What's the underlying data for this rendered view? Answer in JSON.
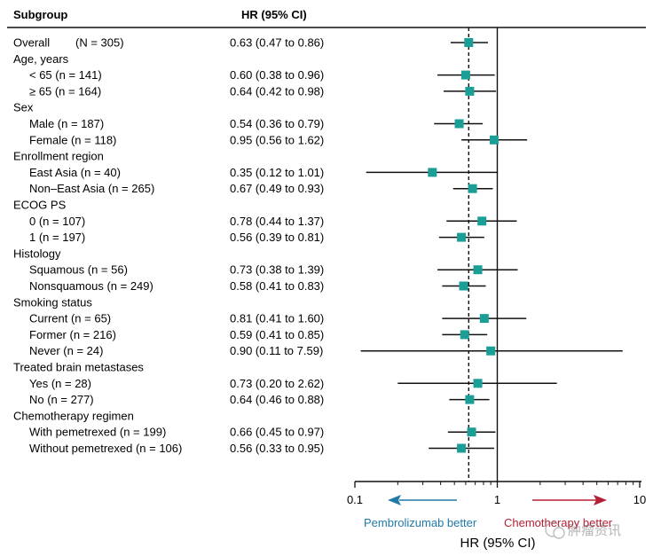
{
  "chart_data": {
    "type": "forest",
    "header": {
      "subgroup": "Subgroup",
      "hr": "HR (95% CI)"
    },
    "xlabel": "HR (95% CI)",
    "xscale": "log",
    "xlim": [
      0.1,
      10
    ],
    "xticks": [
      {
        "value": 0.1,
        "label": "0.1"
      },
      {
        "value": 1,
        "label": "1"
      },
      {
        "value": 10,
        "label": "10"
      }
    ],
    "reference_line": 1,
    "overall_line": 0.63,
    "arrow_left_label": "Pembrolizumab better",
    "arrow_right_label": "Chemotherapy better",
    "watermark": "肿瘤资讯",
    "colors": {
      "marker": "#1a9e96",
      "left_arrow": "#1f7aa8",
      "right_arrow": "#b52036",
      "line": "#111111"
    },
    "rows": [
      {
        "label": "Overall",
        "n": "(N = 305)",
        "hr_text": "0.63 (0.47 to 0.86)",
        "hr": 0.63,
        "lo": 0.47,
        "hi": 0.86
      },
      {
        "label": "Age, years",
        "header": true
      },
      {
        "label": "< 65 (n = 141)",
        "indent": true,
        "hr_text": "0.60 (0.38 to 0.96)",
        "hr": 0.6,
        "lo": 0.38,
        "hi": 0.96
      },
      {
        "label": "≥ 65 (n = 164)",
        "indent": true,
        "hr_text": "0.64 (0.42 to 0.98)",
        "hr": 0.64,
        "lo": 0.42,
        "hi": 0.98
      },
      {
        "label": "Sex",
        "header": true
      },
      {
        "label": "Male (n = 187)",
        "indent": true,
        "hr_text": "0.54 (0.36 to 0.79)",
        "hr": 0.54,
        "lo": 0.36,
        "hi": 0.79
      },
      {
        "label": "Female (n = 118)",
        "indent": true,
        "hr_text": "0.95 (0.56 to 1.62)",
        "hr": 0.95,
        "lo": 0.56,
        "hi": 1.62
      },
      {
        "label": "Enrollment region",
        "header": true
      },
      {
        "label": "East Asia (n = 40)",
        "indent": true,
        "hr_text": "0.35 (0.12 to 1.01)",
        "hr": 0.35,
        "lo": 0.12,
        "hi": 1.01
      },
      {
        "label": "Non–East Asia (n = 265)",
        "indent": true,
        "hr_text": "0.67 (0.49 to 0.93)",
        "hr": 0.67,
        "lo": 0.49,
        "hi": 0.93
      },
      {
        "label": "ECOG PS",
        "header": true
      },
      {
        "label": "0 (n = 107)",
        "indent": true,
        "hr_text": "0.78 (0.44 to 1.37)",
        "hr": 0.78,
        "lo": 0.44,
        "hi": 1.37
      },
      {
        "label": "1 (n = 197)",
        "indent": true,
        "hr_text": "0.56 (0.39 to 0.81)",
        "hr": 0.56,
        "lo": 0.39,
        "hi": 0.81
      },
      {
        "label": "Histology",
        "header": true
      },
      {
        "label": "Squamous (n = 56)",
        "indent": true,
        "hr_text": "0.73 (0.38 to 1.39)",
        "hr": 0.73,
        "lo": 0.38,
        "hi": 1.39
      },
      {
        "label": "Nonsquamous (n = 249)",
        "indent": true,
        "hr_text": "0.58 (0.41 to 0.83)",
        "hr": 0.58,
        "lo": 0.41,
        "hi": 0.83
      },
      {
        "label": "Smoking status",
        "header": true
      },
      {
        "label": "Current (n = 65)",
        "indent": true,
        "hr_text": "0.81 (0.41 to 1.60)",
        "hr": 0.81,
        "lo": 0.41,
        "hi": 1.6
      },
      {
        "label": "Former (n = 216)",
        "indent": true,
        "hr_text": "0.59 (0.41 to 0.85)",
        "hr": 0.59,
        "lo": 0.41,
        "hi": 0.85
      },
      {
        "label": "Never (n = 24)",
        "indent": true,
        "hr_text": "0.90 (0.11 to 7.59)",
        "hr": 0.9,
        "lo": 0.11,
        "hi": 7.59
      },
      {
        "label": "Treated brain metastases",
        "header": true
      },
      {
        "label": "Yes (n = 28)",
        "indent": true,
        "hr_text": "0.73 (0.20 to 2.62)",
        "hr": 0.73,
        "lo": 0.2,
        "hi": 2.62
      },
      {
        "label": "No (n = 277)",
        "indent": true,
        "hr_text": "0.64 (0.46 to 0.88)",
        "hr": 0.64,
        "lo": 0.46,
        "hi": 0.88
      },
      {
        "label": "Chemotherapy regimen",
        "header": true
      },
      {
        "label": "With pemetrexed (n = 199)",
        "indent": true,
        "hr_text": "0.66 (0.45 to 0.97)",
        "hr": 0.66,
        "lo": 0.45,
        "hi": 0.97
      },
      {
        "label": "Without pemetrexed (n = 106)",
        "indent": true,
        "hr_text": "0.56 (0.33 to 0.95)",
        "hr": 0.56,
        "lo": 0.33,
        "hi": 0.95
      }
    ]
  }
}
